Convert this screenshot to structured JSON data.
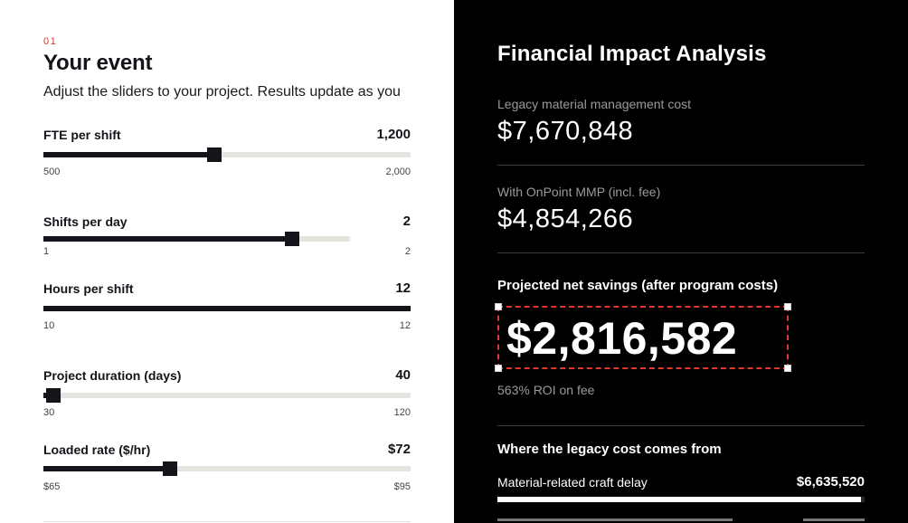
{
  "left": {
    "step_number": "01",
    "title": "Your event",
    "subtitle": "Adjust the sliders to your project. Results update as you",
    "sliders": [
      {
        "id": "fte",
        "label": "FTE per shift",
        "value_text": "1,200",
        "min_label": "500",
        "max_label": "2,000",
        "min": 500,
        "max": 2000,
        "value": 1200
      },
      {
        "id": "shifts",
        "label": "Shifts per day",
        "value_text": "2",
        "min_label": "1",
        "max_label": "2",
        "min": 1,
        "max": 2,
        "value": 2
      },
      {
        "id": "hours",
        "label": "Hours per shift",
        "value_text": "12",
        "min_label": "10",
        "max_label": "12",
        "min": 10,
        "max": 12,
        "value": 12
      },
      {
        "id": "duration",
        "label": "Project duration (days)",
        "value_text": "40",
        "min_label": "30",
        "max_label": "120",
        "min": 30,
        "max": 120,
        "value": 40
      },
      {
        "id": "rate",
        "label": "Loaded rate ($/hr)",
        "value_text": "$72",
        "min_label": "$65",
        "max_label": "$95",
        "min": 65,
        "max": 95,
        "value": 72
      }
    ]
  },
  "right": {
    "title": "Financial Impact Analysis",
    "legacy_label": "Legacy material management cost",
    "legacy_value": "$7,670,848",
    "onpoint_label": "With OnPoint MMP (incl. fee)",
    "onpoint_value": "$4,854,266",
    "savings_label": "Projected net savings (after program costs)",
    "savings_value": "$2,816,582",
    "roi_text": "563% ROI on fee",
    "breakdown_title": "Where the legacy cost comes from",
    "breakdown": [
      {
        "label": "Material-related craft delay",
        "value": "$6,635,520",
        "fraction": 0.99
      }
    ]
  },
  "colors": {
    "accent_red": "#e5372e",
    "dark": "#14141a",
    "track": "#e5e5df"
  }
}
